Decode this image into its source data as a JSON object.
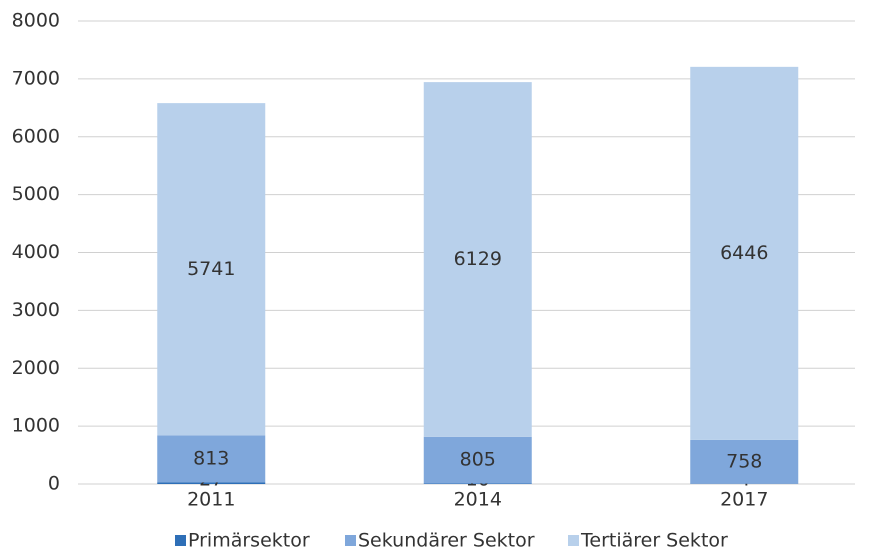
{
  "chart_data": {
    "type": "stacked_bar",
    "categories": [
      "2011",
      "2014",
      "2017"
    ],
    "series": [
      {
        "name": "Primärsektor",
        "color": "#2e6fb7",
        "values": [
          27,
          10,
          4
        ]
      },
      {
        "name": "Sekundärer Sektor",
        "color": "#7fa7db",
        "values": [
          813,
          805,
          758
        ]
      },
      {
        "name": "Tertiärer Sektor",
        "color": "#b8d0eb",
        "values": [
          5741,
          6129,
          6446
        ]
      }
    ],
    "ylim": [
      0,
      8000
    ],
    "yticks": [
      0,
      1000,
      2000,
      3000,
      4000,
      5000,
      6000,
      7000,
      8000
    ],
    "grid": true,
    "legend": "bottom"
  }
}
